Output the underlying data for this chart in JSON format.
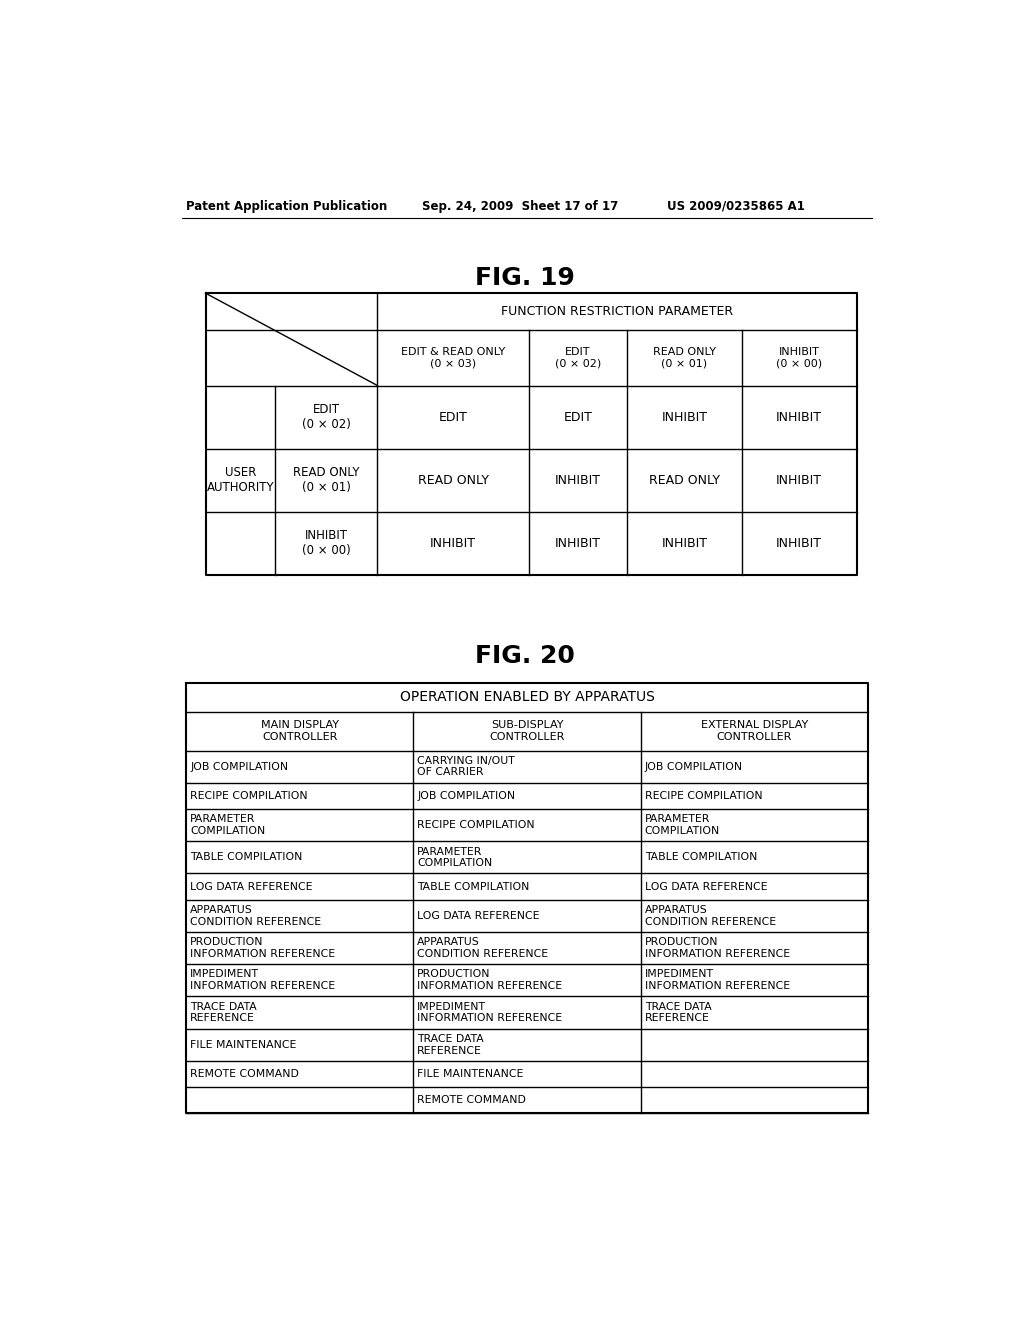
{
  "header_text_left": "Patent Application Publication",
  "header_text_mid": "Sep. 24, 2009  Sheet 17 of 17",
  "header_text_right": "US 2009/0235865 A1",
  "fig19_title": "FIG. 19",
  "fig20_title": "FIG. 20",
  "background_color": "#ffffff",
  "fig19": {
    "top_header": "FUNCTION RESTRICTION PARAMETER",
    "col_headers": [
      "EDIT & READ ONLY\n(0 × 03)",
      "EDIT\n(0 × 02)",
      "READ ONLY\n(0 × 01)",
      "INHIBIT\n(0 × 00)"
    ],
    "row_headers": [
      "EDIT\n(0 × 02)",
      "READ ONLY\n(0 × 01)",
      "INHIBIT\n(0 × 00)"
    ],
    "left_label": "USER\nAUTHORITY",
    "cells": [
      [
        "EDIT",
        "EDIT",
        "INHIBIT",
        "INHIBIT"
      ],
      [
        "READ ONLY",
        "INHIBIT",
        "READ ONLY",
        "INHIBIT"
      ],
      [
        "INHIBIT",
        "INHIBIT",
        "INHIBIT",
        "INHIBIT"
      ]
    ]
  },
  "fig20": {
    "main_header": "OPERATION ENABLED BY APPARATUS",
    "col_headers": [
      "MAIN DISPLAY\nCONTROLLER",
      "SUB-DISPLAY\nCONTROLLER",
      "EXTERNAL DISPLAY\nCONTROLLER"
    ],
    "rows": [
      [
        "JOB COMPILATION",
        "CARRYING IN/OUT\nOF CARRIER",
        "JOB COMPILATION"
      ],
      [
        "RECIPE COMPILATION",
        "JOB COMPILATION",
        "RECIPE COMPILATION"
      ],
      [
        "PARAMETER\nCOMPILATION",
        "RECIPE COMPILATION",
        "PARAMETER\nCOMPILATION"
      ],
      [
        "TABLE COMPILATION",
        "PARAMETER\nCOMPILATION",
        "TABLE COMPILATION"
      ],
      [
        "LOG DATA REFERENCE",
        "TABLE COMPILATION",
        "LOG DATA REFERENCE"
      ],
      [
        "APPARATUS\nCONDITION REFERENCE",
        "LOG DATA REFERENCE",
        "APPARATUS\nCONDITION REFERENCE"
      ],
      [
        "PRODUCTION\nINFORMATION REFERENCE",
        "APPARATUS\nCONDITION REFERENCE",
        "PRODUCTION\nINFORMATION REFERENCE"
      ],
      [
        "IMPEDIMENT\nINFORMATION REFERENCE",
        "PRODUCTION\nINFORMATION REFERENCE",
        "IMPEDIMENT\nINFORMATION REFERENCE"
      ],
      [
        "TRACE DATA\nREFERENCE",
        "IMPEDIMENT\nINFORMATION REFERENCE",
        "TRACE DATA\nREFERENCE"
      ],
      [
        "FILE MAINTENANCE",
        "TRACE DATA\nREFERENCE",
        ""
      ],
      [
        "REMOTE COMMAND",
        "FILE MAINTENANCE",
        ""
      ],
      [
        "",
        "REMOTE COMMAND",
        ""
      ]
    ]
  }
}
